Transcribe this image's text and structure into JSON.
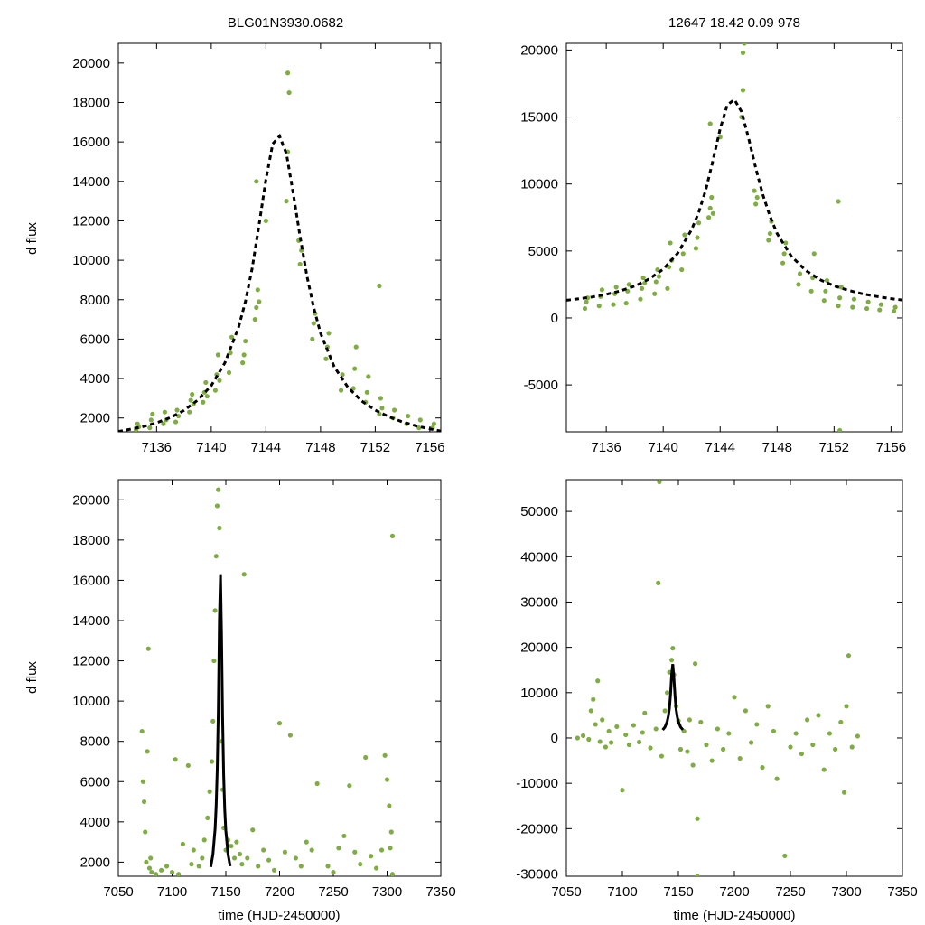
{
  "figure": {
    "title_left": "BLG01N3930.0682",
    "title_right": "12647   18.42   0.09   978",
    "ylabel": "d flux",
    "xlabel": "time (HJD-2450000)",
    "colors": {
      "points": "#7fad44",
      "model": "#000000",
      "axes": "#000000"
    }
  },
  "chart_data": [
    {
      "id": "top-left",
      "type": "scatter",
      "title": "BLG01N3930.0682",
      "xlabel": "",
      "ylabel": "d flux",
      "xlim": [
        7133.2,
        7156.8
      ],
      "ylim": [
        1300,
        21000
      ],
      "xticks": [
        7136,
        7140,
        7144,
        7148,
        7152,
        7156
      ],
      "yticks": [
        2000,
        4000,
        6000,
        8000,
        10000,
        12000,
        14000,
        16000,
        18000,
        20000
      ],
      "series": [
        {
          "name": "observations",
          "kind": "points",
          "x": [
            7134.5,
            7134.6,
            7134.7,
            7135.5,
            7135.6,
            7135.7,
            7136.5,
            7136.6,
            7136.7,
            7137.4,
            7137.5,
            7137.6,
            7138.4,
            7138.5,
            7138.6,
            7138.7,
            7139.4,
            7139.5,
            7139.6,
            7139.7,
            7140.3,
            7140.4,
            7140.5,
            7140.6,
            7141.3,
            7141.4,
            7141.5,
            7142.3,
            7142.4,
            7142.5,
            7143.2,
            7143.3,
            7143.4,
            7143.5,
            7144.0,
            7145.5,
            7145.6,
            7145.7,
            7146.4,
            7146.5,
            7146.6,
            7147.4,
            7147.5,
            7147.6,
            7148.4,
            7148.5,
            7148.6,
            7149.5,
            7149.6,
            7150.4,
            7150.5,
            7150.6,
            7151.3,
            7151.4,
            7151.5,
            7152.3,
            7152.4,
            7152.5,
            7153.3,
            7153.4,
            7154.3,
            7154.4,
            7155.2,
            7155.3,
            7156.2,
            7156.3,
            7152.3,
            7143.3,
            7145.6
          ],
          "y": [
            1400,
            1700,
            1550,
            1500,
            1900,
            2200,
            1700,
            2300,
            1900,
            1800,
            2400,
            2100,
            2300,
            2900,
            3200,
            2700,
            2800,
            3300,
            3800,
            3100,
            3400,
            4200,
            5200,
            3900,
            4300,
            5300,
            6100,
            4800,
            5200,
            5900,
            7000,
            7600,
            8500,
            7900,
            12000,
            13000,
            15500,
            18500,
            11000,
            9800,
            10500,
            6000,
            6800,
            7300,
            5000,
            5600,
            6300,
            3400,
            4200,
            3500,
            4500,
            5600,
            2800,
            3300,
            4100,
            2200,
            3000,
            2500,
            2000,
            2400,
            1700,
            2100,
            1500,
            1900,
            1500,
            1700,
            8700,
            14000,
            19500
          ]
        },
        {
          "name": "model",
          "kind": "dashed-line",
          "x": [
            7133.2,
            7134,
            7135,
            7136,
            7137,
            7138,
            7139,
            7140,
            7141,
            7142,
            7142.5,
            7143,
            7143.5,
            7144,
            7144.5,
            7145,
            7145.5,
            7146,
            7146.5,
            7147,
            7147.5,
            7148,
            7149,
            7150,
            7151,
            7152,
            7153,
            7154,
            7155,
            7156,
            7156.8
          ],
          "y": [
            1320,
            1420,
            1560,
            1760,
            2020,
            2380,
            2900,
            3640,
            4800,
            6600,
            7900,
            9600,
            11800,
            14100,
            15900,
            16300,
            15400,
            13400,
            11200,
            9200,
            7600,
            6300,
            4600,
            3560,
            2860,
            2400,
            2060,
            1800,
            1600,
            1440,
            1340
          ]
        }
      ]
    },
    {
      "id": "top-right",
      "type": "scatter",
      "title": "12647   18.42   0.09   978",
      "xlabel": "",
      "ylabel": "",
      "xlim": [
        7133.2,
        7156.8
      ],
      "ylim": [
        -8500,
        20500
      ],
      "xticks": [
        7136,
        7140,
        7144,
        7148,
        7152,
        7156
      ],
      "yticks": [
        -5000,
        0,
        5000,
        10000,
        15000,
        20000
      ],
      "series": [
        {
          "name": "observations",
          "kind": "points",
          "x": [
            7134.5,
            7134.6,
            7134.7,
            7135.5,
            7135.6,
            7135.7,
            7136.5,
            7136.6,
            7136.7,
            7137.4,
            7137.5,
            7137.6,
            7138.4,
            7138.5,
            7138.6,
            7138.7,
            7139.4,
            7139.5,
            7139.6,
            7139.7,
            7140.3,
            7140.4,
            7140.5,
            7140.6,
            7141.3,
            7141.4,
            7141.5,
            7142.3,
            7142.4,
            7142.5,
            7143.2,
            7143.3,
            7143.4,
            7143.5,
            7144.0,
            7145.5,
            7145.6,
            7145.7,
            7146.4,
            7146.5,
            7146.6,
            7147.4,
            7147.5,
            7147.6,
            7148.4,
            7148.5,
            7148.6,
            7149.5,
            7149.6,
            7150.4,
            7150.5,
            7150.6,
            7151.3,
            7151.4,
            7151.5,
            7152.3,
            7152.4,
            7152.5,
            7153.3,
            7153.4,
            7154.3,
            7154.4,
            7155.2,
            7155.3,
            7156.2,
            7156.3,
            7152.3,
            7152.4,
            7143.3,
            7145.6
          ],
          "y": [
            700,
            1200,
            1500,
            900,
            1600,
            2100,
            1000,
            1800,
            2300,
            1100,
            2000,
            2500,
            1400,
            2200,
            3000,
            2600,
            1800,
            2700,
            3600,
            3100,
            2200,
            3800,
            5600,
            4300,
            3600,
            4800,
            6200,
            5200,
            6000,
            7100,
            7500,
            8200,
            9000,
            7800,
            13500,
            15000,
            17000,
            20500,
            9500,
            8500,
            9000,
            5800,
            6300,
            7200,
            4100,
            4800,
            5600,
            2500,
            3300,
            2000,
            3000,
            4800,
            1300,
            2000,
            2800,
            900,
            1500,
            2300,
            800,
            1400,
            700,
            1200,
            600,
            1000,
            500,
            800,
            8700,
            -8400,
            14500,
            19800
          ]
        },
        {
          "name": "model",
          "kind": "dashed-line",
          "x": [
            7133.2,
            7134,
            7135,
            7136,
            7137,
            7138,
            7139,
            7140,
            7141,
            7142,
            7142.5,
            7143,
            7143.5,
            7144,
            7144.5,
            7145,
            7145.5,
            7146,
            7146.5,
            7147,
            7147.5,
            7148,
            7149,
            7150,
            7151,
            7152,
            7153,
            7154,
            7155,
            7156,
            7156.8
          ],
          "y": [
            1320,
            1420,
            1560,
            1760,
            2020,
            2380,
            2900,
            3640,
            4800,
            6600,
            7900,
            9600,
            11800,
            14100,
            15900,
            16300,
            15400,
            13400,
            11200,
            9200,
            7600,
            6300,
            4600,
            3560,
            2860,
            2400,
            2060,
            1800,
            1600,
            1440,
            1340
          ]
        }
      ]
    },
    {
      "id": "bottom-left",
      "type": "scatter",
      "title": "",
      "xlabel": "time (HJD-2450000)",
      "ylabel": "d flux",
      "xlim": [
        7050,
        7350
      ],
      "ylim": [
        1300,
        21000
      ],
      "xticks": [
        7050,
        7100,
        7150,
        7200,
        7250,
        7300,
        7350
      ],
      "yticks": [
        2000,
        4000,
        6000,
        8000,
        10000,
        12000,
        14000,
        16000,
        18000,
        20000
      ],
      "series": [
        {
          "name": "observations",
          "kind": "points",
          "x": [
            7072,
            7073,
            7074,
            7075,
            7076,
            7077,
            7078,
            7079,
            7080,
            7081,
            7085,
            7090,
            7095,
            7100,
            7103,
            7106,
            7110,
            7115,
            7118,
            7120,
            7125,
            7128,
            7130,
            7133,
            7135,
            7137,
            7138,
            7139,
            7140,
            7141,
            7142,
            7143,
            7144,
            7145,
            7146,
            7147,
            7148,
            7150,
            7152,
            7155,
            7158,
            7160,
            7163,
            7165,
            7167,
            7170,
            7175,
            7180,
            7185,
            7190,
            7195,
            7200,
            7205,
            7210,
            7215,
            7220,
            7225,
            7230,
            7235,
            7245,
            7250,
            7255,
            7260,
            7265,
            7270,
            7275,
            7280,
            7285,
            7290,
            7295,
            7298,
            7300,
            7302,
            7303,
            7304,
            7305
          ],
          "y": [
            8500,
            6000,
            5000,
            3500,
            2000,
            7500,
            12600,
            1700,
            2200,
            1500,
            1400,
            1600,
            1800,
            1500,
            7100,
            1400,
            2900,
            6800,
            1900,
            2600,
            1800,
            2200,
            3100,
            4200,
            5500,
            7000,
            9000,
            12000,
            14500,
            17200,
            19700,
            20500,
            18600,
            13000,
            8000,
            5600,
            3700,
            2600,
            3100,
            2800,
            2200,
            3000,
            2400,
            1900,
            16300,
            2200,
            3600,
            1800,
            2600,
            2100,
            1600,
            8900,
            2500,
            8300,
            2200,
            1800,
            3000,
            2600,
            5900,
            1800,
            1500,
            2700,
            3300,
            5800,
            2500,
            1900,
            7200,
            2300,
            1700,
            2600,
            7300,
            6100,
            4800,
            2700,
            3500,
            1400
          ]
        },
        {
          "name": "outlier",
          "kind": "points",
          "x": [
            7305
          ],
          "y": [
            18200
          ]
        },
        {
          "name": "model",
          "kind": "line",
          "x": [
            7136,
            7138,
            7140,
            7141,
            7142,
            7143,
            7144,
            7145,
            7146,
            7147,
            7148,
            7149,
            7150,
            7152,
            7154
          ],
          "y": [
            1760,
            2380,
            3640,
            4800,
            6600,
            9600,
            14100,
            16300,
            13400,
            9200,
            6300,
            4600,
            3560,
            2400,
            1800
          ]
        }
      ]
    },
    {
      "id": "bottom-right",
      "type": "scatter",
      "title": "",
      "xlabel": "time (HJD-2450000)",
      "ylabel": "",
      "xlim": [
        7050,
        7350
      ],
      "ylim": [
        -30500,
        57000
      ],
      "xticks": [
        7050,
        7100,
        7150,
        7200,
        7250,
        7300,
        7350
      ],
      "yticks": [
        -30000,
        -20000,
        -10000,
        0,
        10000,
        20000,
        30000,
        40000,
        50000
      ],
      "series": [
        {
          "name": "observations",
          "kind": "points",
          "x": [
            7060,
            7065,
            7070,
            7072,
            7074,
            7076,
            7078,
            7080,
            7082,
            7085,
            7088,
            7090,
            7095,
            7100,
            7103,
            7106,
            7110,
            7115,
            7118,
            7120,
            7125,
            7130,
            7132,
            7135,
            7138,
            7140,
            7142,
            7144,
            7145,
            7146,
            7148,
            7150,
            7152,
            7155,
            7158,
            7160,
            7163,
            7165,
            7167,
            7170,
            7175,
            7180,
            7185,
            7190,
            7195,
            7200,
            7205,
            7210,
            7215,
            7220,
            7225,
            7230,
            7235,
            7238,
            7245,
            7250,
            7255,
            7260,
            7265,
            7270,
            7275,
            7280,
            7285,
            7290,
            7295,
            7298,
            7300,
            7302,
            7305,
            7310
          ],
          "y": [
            0,
            500,
            -300,
            6000,
            8500,
            3000,
            12600,
            -800,
            4000,
            -2000,
            1500,
            -1000,
            2500,
            -11500,
            700,
            -1500,
            2800,
            -900,
            1200,
            5500,
            -2200,
            2000,
            34200,
            -4000,
            6000,
            10000,
            14500,
            17200,
            19800,
            14000,
            7000,
            3800,
            -2500,
            1500,
            -3000,
            4000,
            -6000,
            16400,
            -17800,
            3500,
            -1500,
            -5000,
            2000,
            -2500,
            1000,
            9000,
            -4500,
            6000,
            -1000,
            3000,
            -6500,
            7000,
            1500,
            -9000,
            -26000,
            -2000,
            1000,
            -3500,
            4000,
            -1500,
            5000,
            -7000,
            1000,
            -2500,
            3500,
            -12000,
            7000,
            18200,
            -2000,
            400
          ]
        },
        {
          "name": "outliers",
          "kind": "points",
          "x": [
            7133,
            7167
          ],
          "y": [
            56500,
            -30500
          ]
        },
        {
          "name": "model",
          "kind": "line",
          "x": [
            7136,
            7138,
            7140,
            7141,
            7142,
            7143,
            7144,
            7145,
            7146,
            7147,
            7148,
            7149,
            7150,
            7152,
            7154
          ],
          "y": [
            1760,
            2380,
            3640,
            4800,
            6600,
            9600,
            14100,
            16300,
            13400,
            9200,
            6300,
            4600,
            3560,
            2400,
            1800
          ]
        }
      ]
    }
  ]
}
